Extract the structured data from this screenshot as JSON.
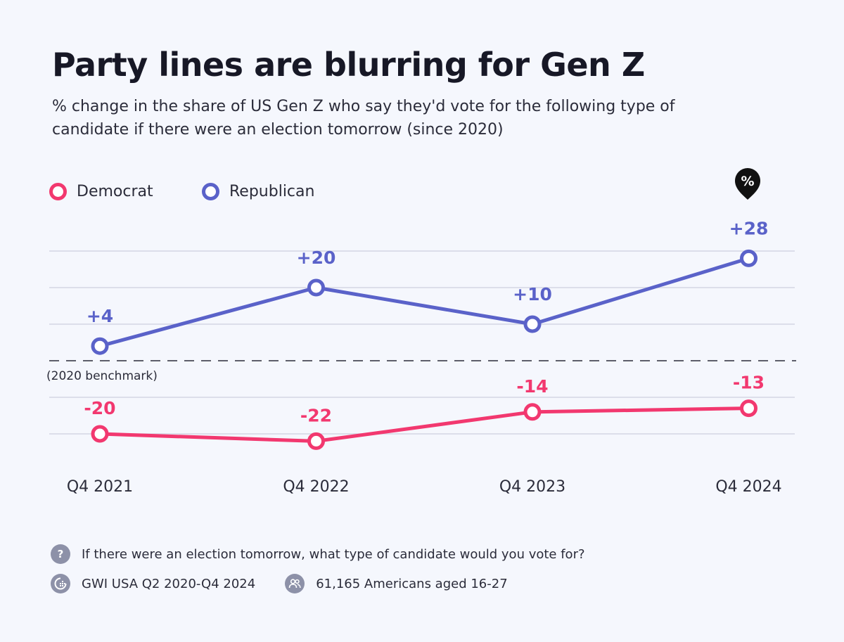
{
  "header": {
    "title": "Party lines are blurring for Gen Z",
    "subtitle": "% change in the share of US Gen Z who say they'd vote for the following type of candidate if there were an election tomorrow (since 2020)"
  },
  "legend": {
    "democrat": "Democrat",
    "republican": "Republican"
  },
  "colors": {
    "democrat": "#f2386f",
    "republican": "#5a62c9",
    "grid": "#d3d6e4",
    "background": "#f5f7fd"
  },
  "marker": {
    "symbol": "%"
  },
  "chart_data": {
    "type": "line",
    "categories": [
      "Q4 2021",
      "Q4 2022",
      "Q4 2023",
      "Q4 2024"
    ],
    "series": [
      {
        "name": "Republican",
        "values": [
          4,
          20,
          10,
          28
        ],
        "labels": [
          "+4",
          "+20",
          "+10",
          "+28"
        ]
      },
      {
        "name": "Democrat",
        "values": [
          -20,
          -22,
          -14,
          -13
        ],
        "labels": [
          "-20",
          "-22",
          "-14",
          "-13"
        ]
      }
    ],
    "baseline_label": "(2020 benchmark)",
    "ylim": [
      -25,
      30
    ],
    "gridlines": [
      -20,
      -10,
      10,
      20,
      30
    ],
    "xlabel": "",
    "ylabel": ""
  },
  "footer": {
    "question_icon": "?",
    "question": "If there were an election tomorrow, what type of candidate would you vote for?",
    "source": "GWI USA Q2 2020-Q4 2024",
    "sample": "61,165 Americans aged 16-27"
  }
}
